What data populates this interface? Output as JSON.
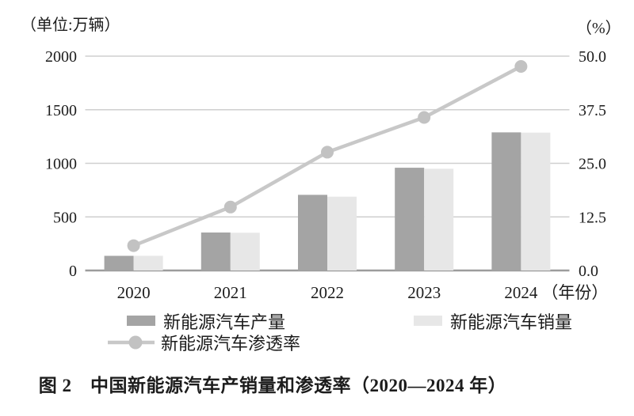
{
  "caption": "图 2　中国新能源汽车产销量和渗透率（2020—2024 年）",
  "chart_data": {
    "type": "bar+line",
    "title": "图 2　中国新能源汽车产销量和渗透率（2020—2024 年）",
    "categories": [
      "2020",
      "2021",
      "2022",
      "2023",
      "2024"
    ],
    "xlabel_suffix": "（年份）",
    "series": [
      {
        "name": "新能源汽车产量",
        "type": "bar",
        "axis": "left",
        "values": [
          136.6,
          354.5,
          705.8,
          958.7,
          1288.8
        ]
      },
      {
        "name": "新能源汽车销量",
        "type": "bar",
        "axis": "left",
        "values": [
          136.7,
          352.1,
          688.7,
          949.5,
          1286.6
        ]
      },
      {
        "name": "新能源汽车渗透率",
        "type": "line",
        "axis": "right",
        "values": [
          5.8,
          14.8,
          27.6,
          35.7,
          47.6
        ]
      }
    ],
    "left_axis": {
      "unit_label": "（单位:万辆）",
      "min": 0,
      "max": 2000,
      "ticks": [
        "0",
        "500",
        "1000",
        "1500",
        "2000"
      ]
    },
    "right_axis": {
      "unit_label": "（%）",
      "min": 0,
      "max": 50,
      "ticks": [
        "0.0",
        "12.5",
        "25.0",
        "37.5",
        "50.0"
      ]
    },
    "grid": true,
    "legend_position": "bottom",
    "colors": {
      "production_bar": "#a4a4a4",
      "sales_bar": "#e7e7e7",
      "penetration_line": "#c8c8c8",
      "penetration_marker": "#c2c2c2",
      "gridline": "#cfcfcf",
      "axis_line": "#9c9c9c",
      "text": "#1c1c1c"
    }
  }
}
